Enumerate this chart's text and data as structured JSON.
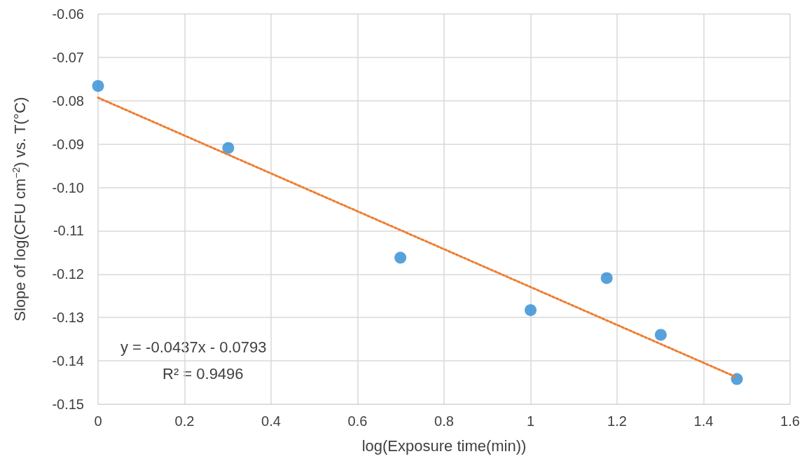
{
  "chart_data": {
    "type": "scatter",
    "xlabel": "log(Exposure time(min))",
    "ylabel": "Slope of log(CFU cm$^{−2}$) vs. T(°C)",
    "series": [
      {
        "color": "#2e8bd3",
        "marker": "circle",
        "x": [
          0,
          0.301,
          0.699,
          1,
          1.176,
          1.301,
          1.477
        ],
        "values": [
          -0.0766,
          -0.0909,
          -0.1162,
          -0.1283,
          -0.1209,
          -0.134,
          -0.1442
        ]
      },
      {
        "type": "line",
        "color": "#ed7d31",
        "marker": "none",
        "line_style": "dotted",
        "x": [
          0,
          1.477
        ],
        "values": [
          -0.0793,
          -0.1438
        ]
      }
    ],
    "xlim": [
      0,
      1.6
    ],
    "xticks": [
      0,
      0.2,
      0.4,
      0.6,
      0.8,
      1,
      1.2,
      1.4,
      1.6
    ],
    "ylim": [
      -0.15,
      -0.06
    ],
    "yticks": [
      {
        "value": -0.15,
        "label": "-0.15"
      },
      {
        "value": -0.14,
        "label": "-0.14"
      },
      {
        "value": -0.13,
        "label": "-0.13"
      },
      {
        "value": -0.12,
        "label": "-0.12"
      },
      {
        "value": -0.11,
        "label": "-0.11"
      },
      {
        "value": -0.1,
        "label": "-0.10"
      },
      {
        "value": -0.09,
        "label": "-0.09"
      },
      {
        "value": -0.08,
        "label": "-0.08"
      },
      {
        "value": -0.07,
        "label": "-0.07"
      },
      {
        "value": -0.06,
        "label": "-0.06"
      }
    ],
    "grid": true,
    "annotations": [
      "y = -0.0437x - 0.0793",
      "R² = 0.9496"
    ]
  }
}
